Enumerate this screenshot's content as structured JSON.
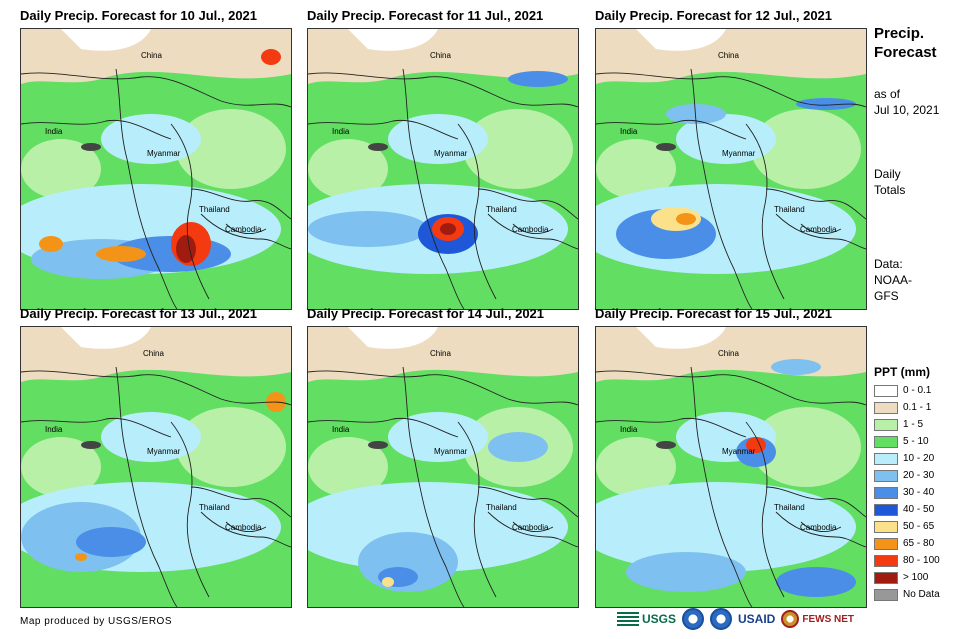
{
  "panels": [
    {
      "title": "Daily Precip. Forecast for 10 Jul., 2021"
    },
    {
      "title": "Daily Precip. Forecast for 11 Jul., 2021"
    },
    {
      "title": "Daily Precip. Forecast for 12 Jul., 2021"
    },
    {
      "title": "Daily Precip. Forecast for 13 Jul., 2021"
    },
    {
      "title": "Daily Precip. Forecast for 14 Jul., 2021"
    },
    {
      "title": "Daily Precip. Forecast for 15 Jul., 2021"
    }
  ],
  "map_labels": {
    "china": "China",
    "india": "India",
    "myanmar": "Myanmar",
    "thailand": "Thailand",
    "cambodia": "Cambodia"
  },
  "sidebar": {
    "title_line1": "Precip.",
    "title_line2": "Forecast",
    "asof_line1": "as of",
    "asof_line2": "Jul 10, 2021",
    "totals_line1": "Daily",
    "totals_line2": "Totals",
    "data_line1": "Data:",
    "data_line2": "NOAA-",
    "data_line3": "GFS"
  },
  "legend": {
    "title": "PPT (mm)",
    "items": [
      {
        "label": "0 - 0.1",
        "color": "#ffffff"
      },
      {
        "label": "0.1 - 1",
        "color": "#eddcc0"
      },
      {
        "label": "1 - 5",
        "color": "#b8f0a8"
      },
      {
        "label": "5 - 10",
        "color": "#62de62"
      },
      {
        "label": "10 - 20",
        "color": "#b8eefc"
      },
      {
        "label": "20 - 30",
        "color": "#7ec0f0"
      },
      {
        "label": "30 - 40",
        "color": "#4a8ee8"
      },
      {
        "label": "40 - 50",
        "color": "#1e58d8"
      },
      {
        "label": "50 - 65",
        "color": "#fbe28a"
      },
      {
        "label": "65 - 80",
        "color": "#f39418"
      },
      {
        "label": "80 - 100",
        "color": "#f43a10"
      },
      {
        "label": "> 100",
        "color": "#a01c10"
      },
      {
        "label": "No Data",
        "color": "#989898"
      }
    ]
  },
  "footer": {
    "credit": "Map produced by USGS/EROS",
    "logos": [
      "USGS",
      "USAID",
      "FEWS NET"
    ]
  }
}
